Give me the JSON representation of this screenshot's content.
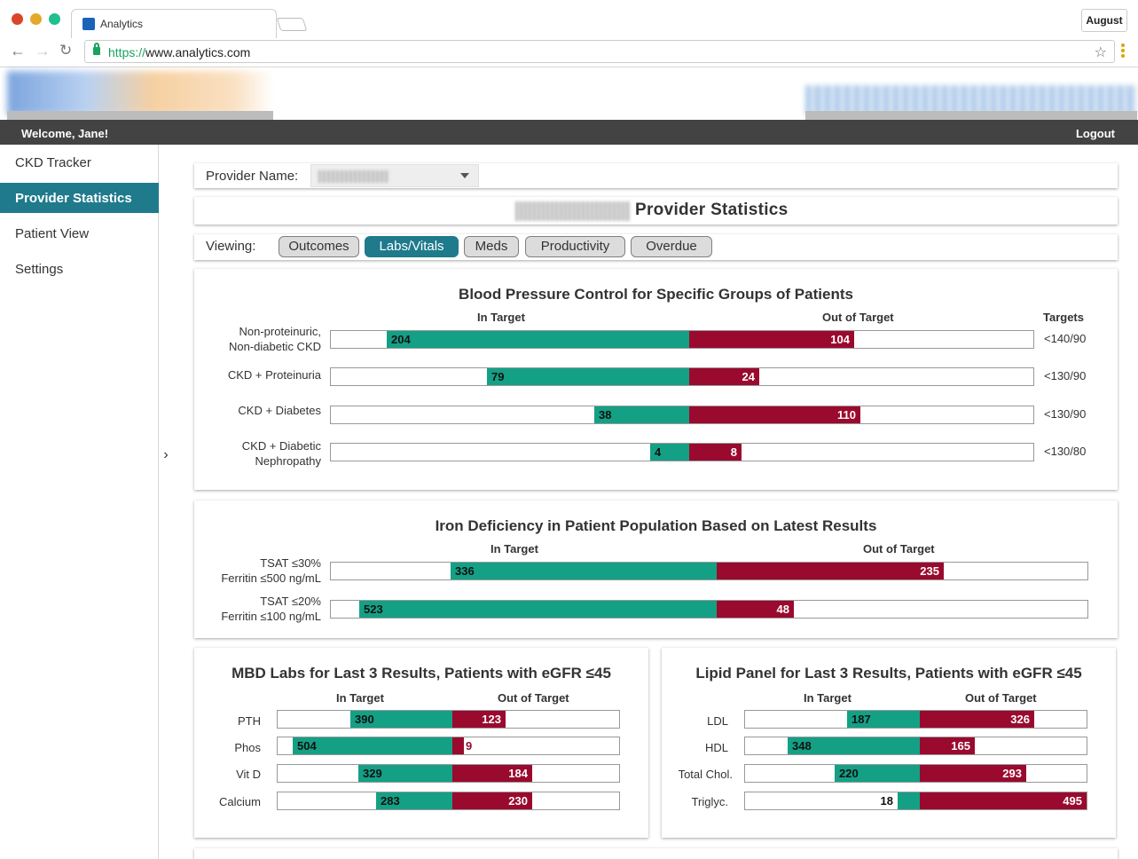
{
  "browser": {
    "tab_title": "Analytics",
    "url_proto": "https://",
    "url_host": "www.analytics.com",
    "profile_label": "August"
  },
  "topbar": {
    "welcome": "Welcome, Jane!",
    "logout": "Logout"
  },
  "sidebar": {
    "items": [
      {
        "label": "CKD Tracker"
      },
      {
        "label": "Provider Statistics"
      },
      {
        "label": "Patient View"
      },
      {
        "label": "Settings"
      }
    ]
  },
  "provider": {
    "label": "Provider Name:"
  },
  "page": {
    "title": "Provider Statistics"
  },
  "viewing": {
    "label": "Viewing:",
    "tabs": [
      "Outcomes",
      "Labs/Vitals",
      "Meds",
      "Productivity",
      "Overdue"
    ],
    "active": "Labs/Vitals"
  },
  "colors": {
    "in_target": "#14a085",
    "out_target": "#9a0a2e",
    "accent": "#1f7a8c"
  },
  "charts": {
    "bp": {
      "title": "Blood Pressure Control for Specific Groups of Patients",
      "in_label": "In Target",
      "out_label": "Out of Target",
      "targets_label": "Targets",
      "rows": [
        {
          "label1": "Non-proteinuric,",
          "label2": "Non-diabetic CKD",
          "in": "204",
          "out": "104",
          "target": "<140/90"
        },
        {
          "label1": "CKD + Proteinuria",
          "label2": "",
          "in": "79",
          "out": "24",
          "target": "<130/90"
        },
        {
          "label1": "CKD + Diabetes",
          "label2": "",
          "in": "38",
          "out": "110",
          "target": "<130/90"
        },
        {
          "label1": "CKD + Diabetic",
          "label2": "Nephropathy",
          "in": "4",
          "out": "8",
          "target": "<130/80"
        }
      ]
    },
    "iron": {
      "title": "Iron Deficiency in Patient Population Based on Latest Results",
      "in_label": "In Target",
      "out_label": "Out of Target",
      "rows": [
        {
          "label1": "TSAT ≤30%",
          "label2": "Ferritin ≤500 ng/mL",
          "in": "336",
          "out": "235"
        },
        {
          "label1": "TSAT ≤20%",
          "label2": "Ferritin ≤100 ng/mL",
          "in": "523",
          "out": "48"
        }
      ]
    },
    "mbd": {
      "title": "MBD Labs for Last 3 Results, Patients with eGFR ≤45",
      "in_label": "In Target",
      "out_label": "Out of Target",
      "rows": [
        {
          "label": "PTH",
          "in": "390",
          "out": "123"
        },
        {
          "label": "Phos",
          "in": "504",
          "out": "9"
        },
        {
          "label": "Vit D",
          "in": "329",
          "out": "184"
        },
        {
          "label": "Calcium",
          "in": "283",
          "out": "230"
        }
      ]
    },
    "lipid": {
      "title": "Lipid Panel for Last 3 Results, Patients with eGFR ≤45",
      "in_label": "In Target",
      "out_label": "Out of Target",
      "rows": [
        {
          "label": "LDL",
          "in": "187",
          "out": "326"
        },
        {
          "label": "HDL",
          "in": "348",
          "out": "165"
        },
        {
          "label": "Total Chol.",
          "in": "220",
          "out": "293"
        },
        {
          "label": "Triglyc.",
          "in": "18",
          "out": "495"
        }
      ]
    }
  }
}
